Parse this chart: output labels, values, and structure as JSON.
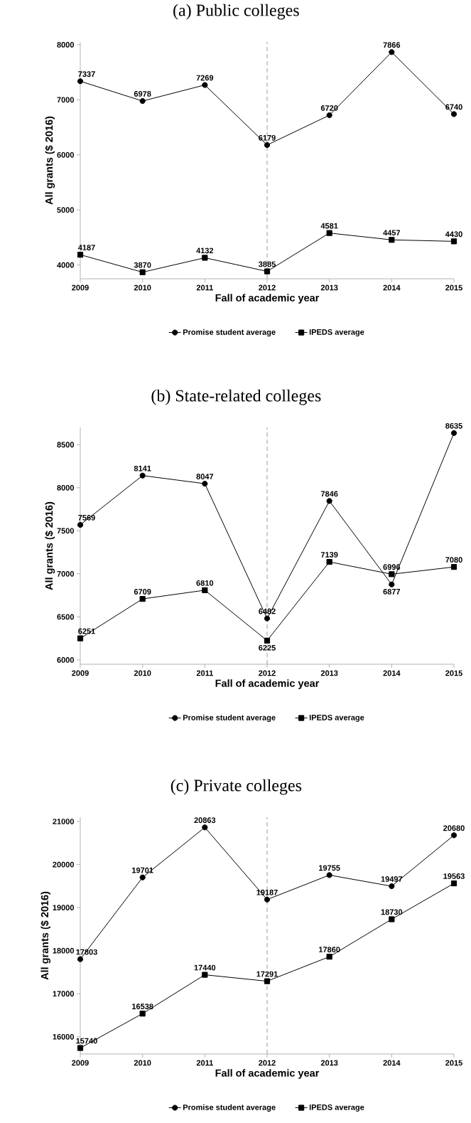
{
  "chart_data": [
    {
      "type": "line",
      "title": "(a) Public colleges",
      "xlabel": "Fall of academic year",
      "ylabel": "All grants ($ 2016)",
      "x": [
        2009,
        2010,
        2011,
        2012,
        2013,
        2014,
        2015
      ],
      "xlim": [
        2009,
        2015
      ],
      "xticks": [
        2009,
        2010,
        2011,
        2012,
        2013,
        2014,
        2015
      ],
      "ylim": [
        3750,
        8050
      ],
      "yticks": [
        4000,
        5000,
        6000,
        7000,
        8000
      ],
      "legend": "bottom",
      "data_labels": true,
      "series": [
        {
          "name": "Promise student average",
          "color": "#000000",
          "marker": "circle",
          "values": [
            7337,
            6978,
            7269,
            6179,
            6720,
            7866,
            6740
          ]
        },
        {
          "name": "IPEDS average",
          "color": "#000000",
          "marker": "square",
          "values": [
            4187,
            3870,
            4132,
            3885,
            4581,
            4457,
            4430
          ]
        }
      ],
      "ref_lines": [
        {
          "axis": "x",
          "value": 2012,
          "color": "#999999",
          "line_style": "dashed"
        }
      ]
    },
    {
      "type": "line",
      "title": "(b) State-related colleges",
      "xlabel": "Fall of academic year",
      "ylabel": "All grants ($ 2016)",
      "x": [
        2009,
        2010,
        2011,
        2012,
        2013,
        2014,
        2015
      ],
      "xlim": [
        2009,
        2015
      ],
      "xticks": [
        2009,
        2010,
        2011,
        2012,
        2013,
        2014,
        2015
      ],
      "ylim": [
        5950,
        8700
      ],
      "yticks": [
        6000,
        6500,
        7000,
        7500,
        8000,
        8500
      ],
      "legend": "bottom",
      "data_labels": true,
      "series": [
        {
          "name": "Promise student average",
          "color": "#000000",
          "marker": "circle",
          "values": [
            7569,
            8141,
            8047,
            6482,
            7846,
            6877,
            8635
          ]
        },
        {
          "name": "IPEDS average",
          "color": "#000000",
          "marker": "square",
          "values": [
            6251,
            6709,
            6810,
            6225,
            7139,
            6996,
            7080
          ]
        }
      ],
      "ref_lines": [
        {
          "axis": "x",
          "value": 2012,
          "color": "#999999",
          "line_style": "dashed"
        }
      ]
    },
    {
      "type": "line",
      "title": "(c) Private colleges",
      "xlabel": "Fall of academic year",
      "ylabel": "All grants ($ 2016)",
      "x": [
        2009,
        2010,
        2011,
        2012,
        2013,
        2014,
        2015
      ],
      "xlim": [
        2009,
        2015
      ],
      "xticks": [
        2009,
        2010,
        2011,
        2012,
        2013,
        2014,
        2015
      ],
      "ylim": [
        15600,
        21100
      ],
      "yticks": [
        16000,
        17000,
        18000,
        19000,
        20000,
        21000
      ],
      "legend": "bottom",
      "data_labels": true,
      "series": [
        {
          "name": "Promise student average",
          "color": "#000000",
          "marker": "circle",
          "values": [
            17803,
            19701,
            20863,
            19187,
            19755,
            19497,
            20680
          ]
        },
        {
          "name": "IPEDS average",
          "color": "#000000",
          "marker": "square",
          "values": [
            15740,
            16538,
            17440,
            17291,
            17860,
            18730,
            19563
          ]
        }
      ],
      "ref_lines": [
        {
          "axis": "x",
          "value": 2012,
          "color": "#999999",
          "line_style": "dashed"
        }
      ]
    }
  ]
}
